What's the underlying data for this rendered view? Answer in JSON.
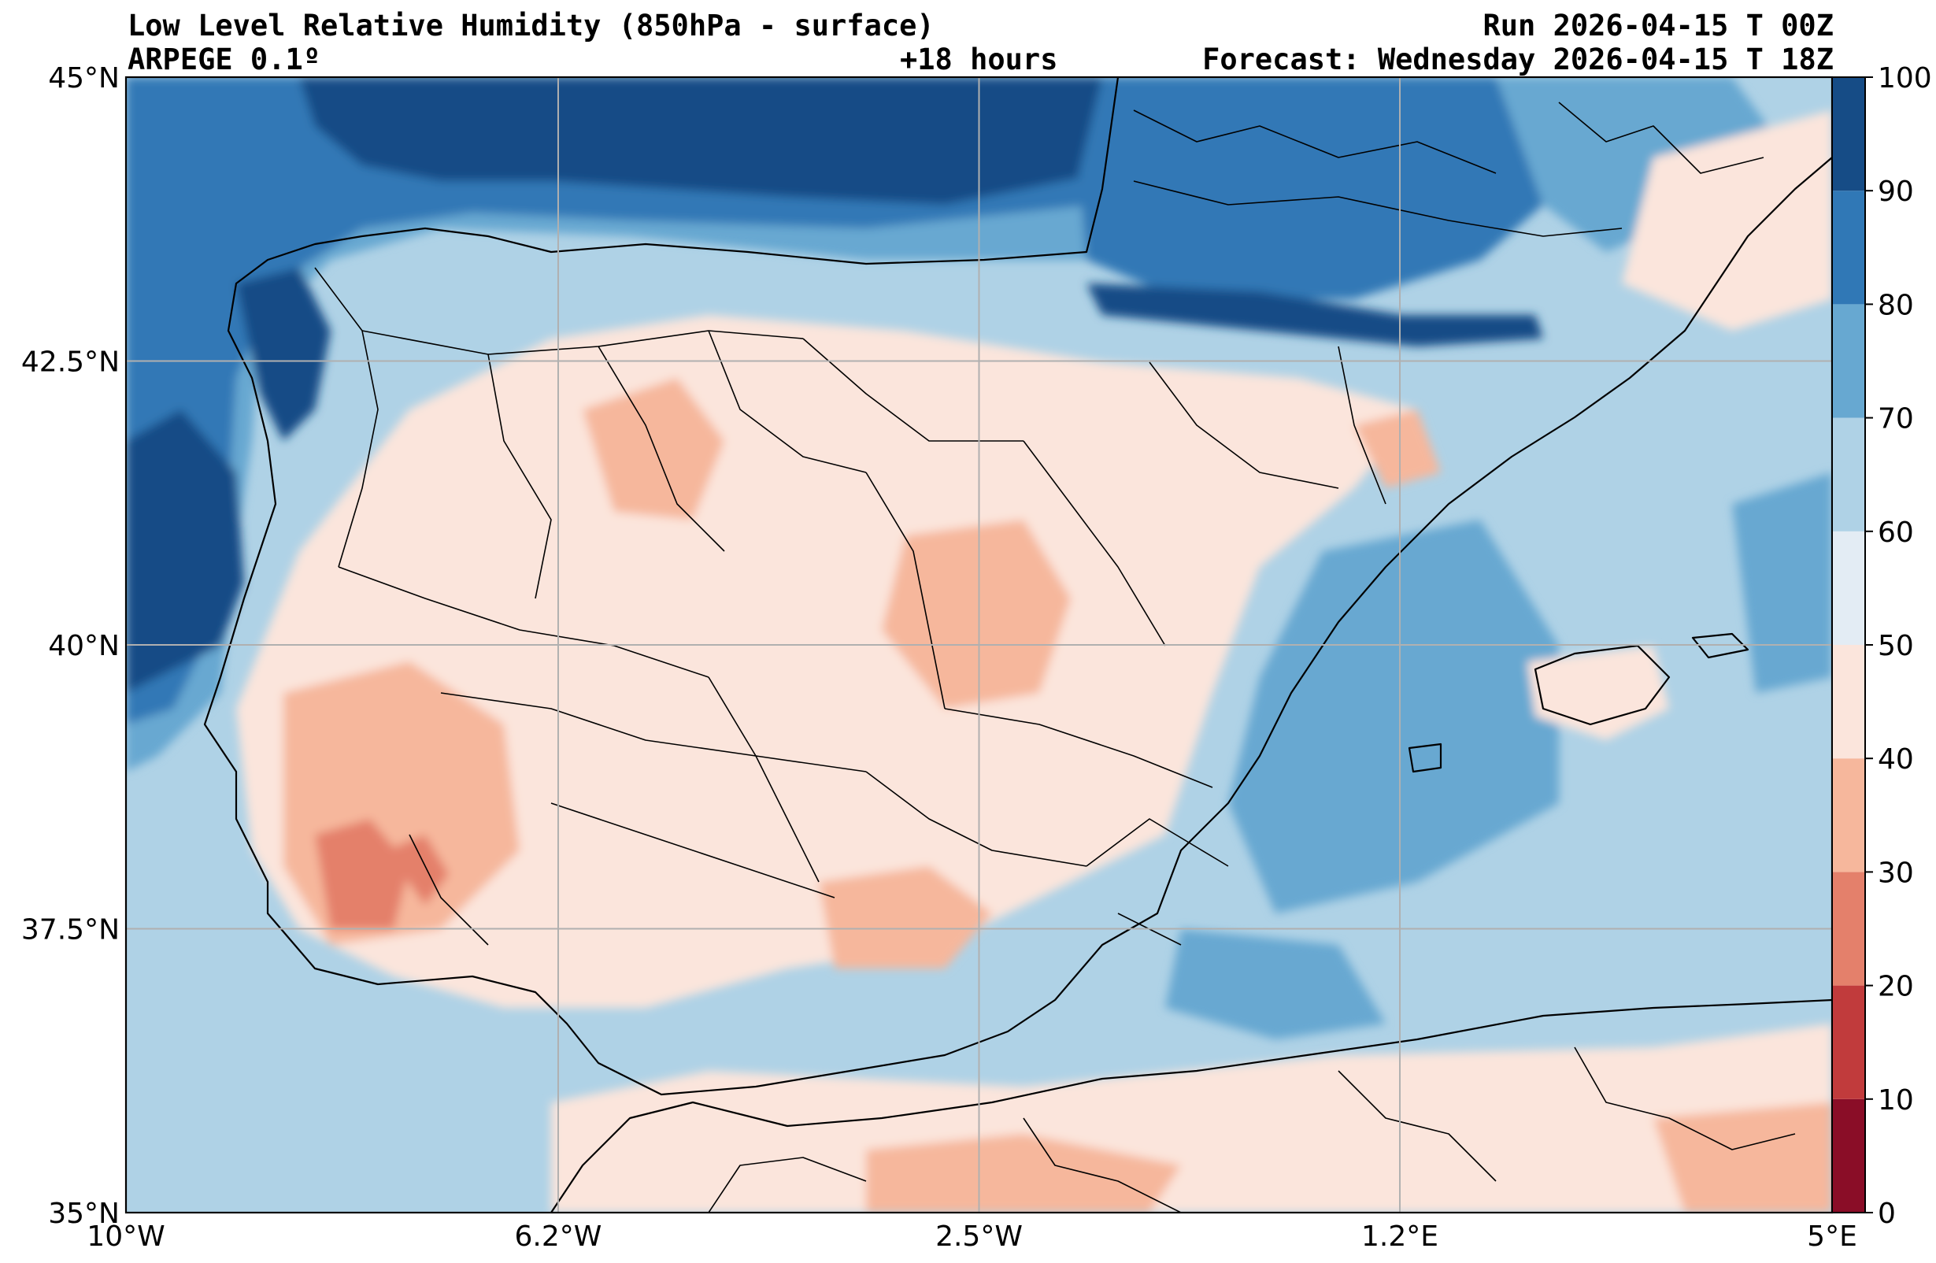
{
  "header": {
    "title": "Low Level Relative Humidity (850hPa - surface)",
    "run": "Run 2026-04-15 T 00Z",
    "model": "ARPEGE 0.1º",
    "lead": "+18 hours",
    "forecast": "Forecast: Wednesday 2026-04-15 T 18Z"
  },
  "map": {
    "lon_range": [
      -10,
      5
    ],
    "lat_range": [
      35,
      45
    ],
    "lon_ticks": [
      {
        "value": -10,
        "label": "10°W"
      },
      {
        "value": -6.2,
        "label": "6.2°W"
      },
      {
        "value": -2.5,
        "label": "2.5°W"
      },
      {
        "value": 1.2,
        "label": "1.2°E"
      },
      {
        "value": 5,
        "label": "5°E"
      }
    ],
    "lat_ticks": [
      {
        "value": 45,
        "label": "45°N"
      },
      {
        "value": 42.5,
        "label": "42.5°N"
      },
      {
        "value": 40,
        "label": "40°N"
      },
      {
        "value": 37.5,
        "label": "37.5°N"
      },
      {
        "value": 35,
        "label": "35°N"
      }
    ],
    "grid": true,
    "field": "relative humidity (%)",
    "colorbar": {
      "levels": [
        0,
        10,
        20,
        30,
        40,
        50,
        60,
        70,
        80,
        90,
        100
      ],
      "labels": [
        "0",
        "10",
        "20",
        "30",
        "40",
        "50",
        "60",
        "70",
        "80",
        "90",
        "100"
      ],
      "colors": [
        "#8a0d27",
        "#c13b3c",
        "#e4806b",
        "#f6b79c",
        "#fbe5dc",
        "#e3ecf4",
        "#afd2e6",
        "#67a8d1",
        "#3078b6",
        "#164c86"
      ]
    }
  }
}
